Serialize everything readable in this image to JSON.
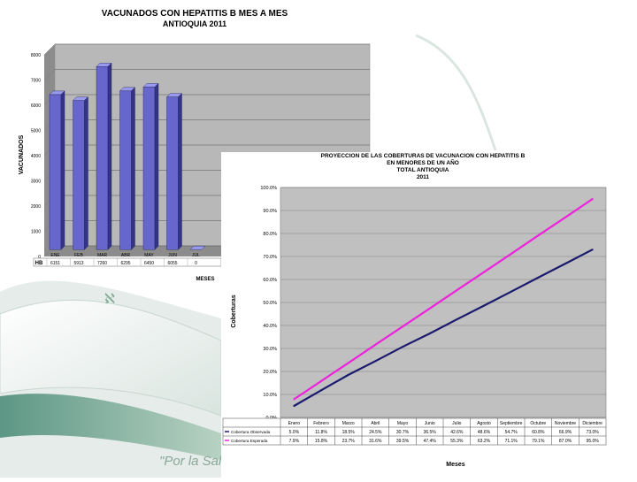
{
  "slide": {
    "footer_script": "\"Por la Sal",
    "decor_mark": "ℵ"
  },
  "chart_data": [
    {
      "type": "bar",
      "title": "VACUNADOS CON HEPATITIS B MES A MES",
      "subtitle": "ANTIOQUIA 2011",
      "xlabel": "MESES",
      "ylabel": "VACUNADOS",
      "ylim": [
        0,
        8000
      ],
      "yticks": [
        "8000",
        "7000",
        "6000",
        "5000",
        "4000",
        "3000",
        "2000",
        "1000",
        "0"
      ],
      "categories": [
        "ENE",
        "FEB",
        "MAR",
        "ABR",
        "MAY",
        "JUN",
        "JUL"
      ],
      "values": [
        6151,
        5913,
        7260,
        6295,
        6450,
        6055,
        0
      ],
      "table_row_label": "HB",
      "table_values": [
        "6151",
        "5913",
        "7260",
        "6295",
        "6450",
        "6055",
        "0"
      ],
      "colors": {
        "bar": "#6666cc",
        "bar_top": "#9999ee",
        "bar_side": "#333388",
        "plot_bg": "#b8b8b8",
        "wall": "#999999"
      }
    },
    {
      "type": "line",
      "title_lines": [
        "PROYECCION DE LAS COBERTURAS DE VACUNACION CON HEPATITIS B",
        "EN MENORES DE UN AÑO",
        "TOTAL ANTIOQUIA",
        "2011"
      ],
      "xlabel": "Meses",
      "ylabel": "Coberturas",
      "ylim": [
        0,
        100
      ],
      "yticks": [
        "100.0%",
        "90.0%",
        "80.0%",
        "70.0%",
        "60.0%",
        "50.0%",
        "40.0%",
        "30.0%",
        "20.0%",
        "10.0%",
        "0.0%"
      ],
      "categories": [
        "Enero",
        "Febrero",
        "Marzo",
        "Abril",
        "Mayo",
        "Junio",
        "Julio",
        "Agosto",
        "Septiembre",
        "Octubre",
        "Noviembre",
        "Diciembre"
      ],
      "series": [
        {
          "name": "Cobertura Observada",
          "values": [
            5.0,
            11.8,
            18.5,
            24.5,
            30.7,
            36.5,
            42.6,
            48.6,
            54.7,
            60.8,
            66.9,
            73.0
          ],
          "labels": [
            "5.0%",
            "11.8%",
            "18.5%",
            "24.5%",
            "30.7%",
            "36.5%",
            "42.6%",
            "48.6%",
            "54.7%",
            "60.8%",
            "66.9%",
            "73.0%"
          ],
          "color": "#1a1a6e"
        },
        {
          "name": "Cobertura Esperada",
          "values": [
            7.9,
            15.8,
            23.7,
            31.6,
            39.5,
            47.4,
            55.3,
            63.2,
            71.1,
            79.1,
            87.0,
            95.0
          ],
          "labels": [
            "7.9%",
            "15.8%",
            "23.7%",
            "31.6%",
            "39.5%",
            "47.4%",
            "55.3%",
            "63.2%",
            "71.1%",
            "79.1%",
            "87.0%",
            "95.0%"
          ],
          "color": "#ee22dd"
        }
      ],
      "colors": {
        "plot_bg": "#c0c0c0",
        "grid": "#7f7f7f"
      }
    }
  ]
}
